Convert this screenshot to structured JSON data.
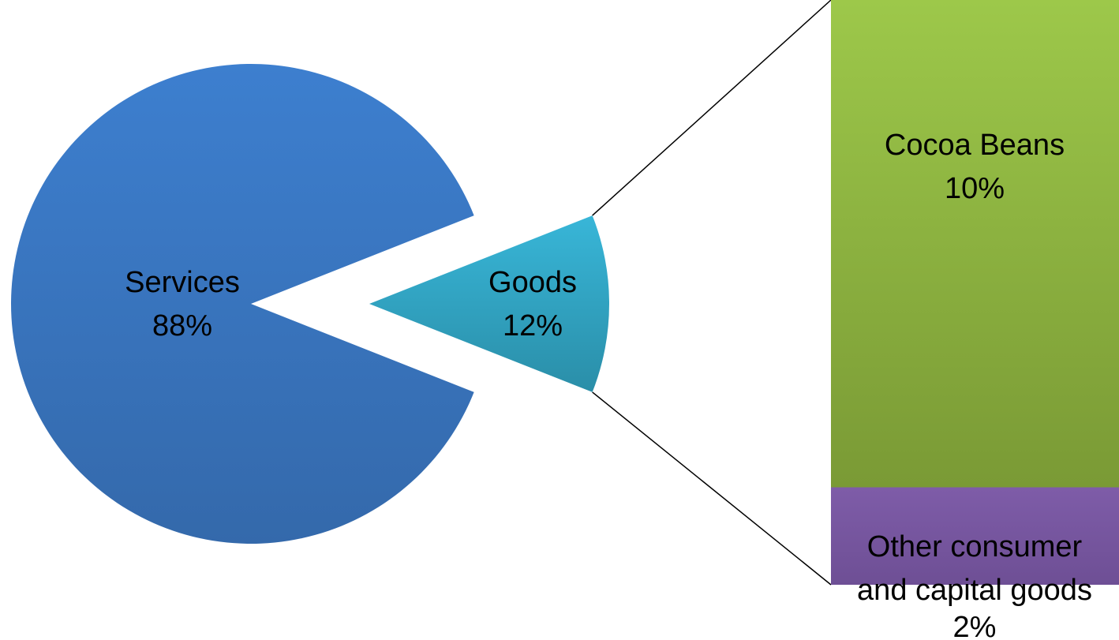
{
  "chart_data": {
    "type": "bar-of-pie",
    "pie": {
      "slices": [
        {
          "label": "Services",
          "value_text": "88%",
          "value": 88,
          "color": "#3469AB",
          "color_light": "#3D7FCF"
        },
        {
          "label": "Goods",
          "value_text": "12%",
          "value": 12,
          "color": "#2A8EA8",
          "color_light": "#38B6D8"
        }
      ]
    },
    "breakdown_bar": {
      "parent": "Goods",
      "segments": [
        {
          "label": "Cocoa Beans",
          "value_text": "10%",
          "value": 10,
          "color": "#7A9A35",
          "color_light": "#9DC84A"
        },
        {
          "label_line1": "Other consumer",
          "label_line2": "and capital goods",
          "value_text": "2%",
          "value": 2,
          "color": "#6E4F95",
          "color_light": "#7E5CA8"
        }
      ]
    }
  }
}
